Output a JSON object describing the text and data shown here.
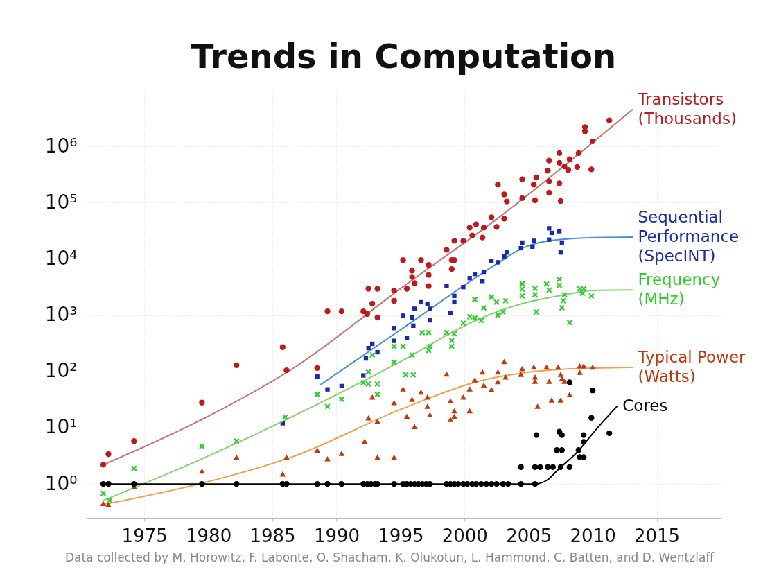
{
  "chart_data": {
    "type": "scatter",
    "title": "Trends in Computation",
    "log": "y",
    "grid": true,
    "xlim": [
      1970.5,
      2020
    ],
    "xticks": [
      1975,
      1980,
      1985,
      1990,
      1995,
      2000,
      2005,
      2010,
      2015
    ],
    "ylim": [
      0.25,
      10000000
    ],
    "yticks": [
      {
        "value": 1,
        "label": "10⁰"
      },
      {
        "value": 10,
        "label": "10¹"
      },
      {
        "value": 100,
        "label": "10²"
      },
      {
        "value": 1000,
        "label": "10³"
      },
      {
        "value": 10000,
        "label": "10⁴"
      },
      {
        "value": 100000,
        "label": "10⁵"
      },
      {
        "value": 1000000,
        "label": "10⁶"
      }
    ],
    "annotations": [
      "Data collected by M. Horowitz, F. Labonte, O. Shacham, K. Olukotun, L. Hammond,  C. Batten, and D. Wentzlaff"
    ],
    "series": [
      {
        "type": "line",
        "color": "#c27272",
        "x": [
          1971.8,
          1980,
          1986.5,
          1995.2,
          2002.7,
          2013.1
        ],
        "values": [
          2.2,
          16,
          109,
          3200,
          55000,
          4500000
        ]
      },
      {
        "name": "Transistors\n(Thousands)",
        "marker": "circle",
        "color": "#b81c1c",
        "x": [
          1971.8,
          1972.2,
          1974.2,
          1979.5,
          1982.2,
          1985.8,
          1986.1,
          1988.5,
          1989.3,
          1990.4,
          1992.1,
          1992.5,
          1993.2,
          1992.8,
          1992.4,
          1993.2,
          1994.5,
          1994.5,
          1995.2,
          1995.5,
          1995.9,
          1995.9,
          1996.1,
          1996.6,
          1997.2,
          1997.2,
          1997.2,
          1998.6,
          1999.0,
          1999.2,
          1999.0,
          1999.2,
          1999.9,
          2000.4,
          2000.6,
          2000.9,
          2001.4,
          2001.5,
          2002.1,
          2002.5,
          2002.6,
          2011.3,
          2009.4,
          2009.4,
          2010.0,
          2007.4,
          2008.9,
          2008.2,
          2006.6,
          2007.4,
          2007.8,
          2008.1,
          2008.8,
          2009.9,
          2006.5,
          2005.6,
          2004.5,
          2005.4,
          2006.6,
          2007.4,
          2006.6,
          2003.1,
          2004.5,
          2005.5,
          2007.5,
          2003.3,
          2003.1
        ],
        "values": [
          2.2,
          3.4,
          5.8,
          28,
          129,
          270,
          105,
          115,
          1170,
          1170,
          1170,
          2950,
          2950,
          1600,
          1050,
          910,
          2750,
          1800,
          9500,
          2950,
          6200,
          4800,
          3700,
          9500,
          7800,
          5200,
          3300,
          14500,
          9500,
          9500,
          6600,
          21000,
          21000,
          36000,
          26000,
          41000,
          24000,
          36000,
          55000,
          37000,
          210000,
          2900000,
          2200000,
          1850000,
          1230000,
          760000,
          760000,
          590000,
          560000,
          510000,
          440000,
          380000,
          430000,
          390000,
          370000,
          280000,
          260000,
          210000,
          240000,
          220000,
          150000,
          140000,
          120000,
          110000,
          107000,
          105000,
          52000
        ]
      },
      {
        "type": "line",
        "color": "#4a8ed8",
        "x": [
          1988.7,
          1995,
          2002.7,
          2004.4,
          2006.6,
          2010,
          2013.1
        ],
        "values": [
          57,
          550,
          8700,
          15000,
          21000,
          24000,
          24500
        ]
      },
      {
        "name": "Sequential\nPerformance\n(SpecINT)",
        "marker": "square",
        "color": "#1a2aa8",
        "x": [
          1985.8,
          1988.5,
          1989.3,
          1990.4,
          1992.1,
          1992.3,
          1992.8,
          1992.5,
          1993.2,
          1994.5,
          1994.5,
          1995.2,
          1995.5,
          1995.9,
          1996.1,
          1996.0,
          1996.6,
          1997.1,
          1997.3,
          1997.3,
          1998.6,
          1998.9,
          1999.2,
          1999.2,
          1999.9,
          2000.4,
          2000.8,
          2001.4,
          2001.5,
          2002.1,
          2002.6,
          2006.6,
          2007.4,
          2006.8,
          2006.6,
          2007.6,
          2007.5,
          2005.4,
          2005.3,
          2004.5,
          2004.4,
          2003.3,
          2003.1
        ],
        "values": [
          12,
          81,
          48,
          55,
          85,
          170,
          310,
          260,
          220,
          590,
          350,
          980,
          390,
          910,
          1300,
          650,
          1700,
          1600,
          1300,
          810,
          3300,
          1100,
          2200,
          1700,
          3150,
          4550,
          5400,
          4050,
          5900,
          9100,
          8700,
          35000,
          31000,
          29000,
          22000,
          19500,
          13000,
          21000,
          16500,
          19500,
          15500,
          13000,
          11000
        ]
      },
      {
        "type": "line",
        "color": "#86d06e",
        "x": [
          1971.8,
          1979.5,
          1988.2,
          1995,
          2001.1,
          2004.5,
          2007.8,
          2010,
          2013.1
        ],
        "values": [
          0.51,
          2.8,
          24,
          150,
          850,
          1600,
          2300,
          2750,
          2800
        ]
      },
      {
        "name": "Frequency\n(MHz)",
        "marker": "cross",
        "color": "#2fcc2f",
        "x": [
          1971.8,
          1972.3,
          1974.2,
          1979.5,
          1982.2,
          1986,
          1988.5,
          1989.3,
          1990.4,
          1992.1,
          1992.5,
          1992.8,
          1992.5,
          1993.2,
          1993.2,
          1994.5,
          1995.2,
          1994.5,
          1995.4,
          1996.0,
          1995.9,
          1996.7,
          1997.2,
          1997.2,
          1997.3,
          1998.6,
          1999.0,
          1999.0,
          1999.2,
          1999.9,
          2000.4,
          2000.8,
          2000.8,
          2001.3,
          2001.5,
          2002.1,
          2002.5,
          2002.6,
          2004.5,
          2004.5,
          2004.5,
          2005.5,
          2005.5,
          2006.4,
          2006.6,
          2007.4,
          2007.4,
          2007.8,
          2007.7,
          2007.6,
          2008.2,
          2009.0,
          2009.3,
          2009.2,
          2009.9,
          2005.6,
          2003.2,
          2003.0
        ],
        "values": [
          0.68,
          0.51,
          1.9,
          4.7,
          5.8,
          15.5,
          39,
          24,
          32,
          63,
          98,
          196,
          60,
          60,
          39,
          280,
          280,
          145,
          87,
          87,
          196,
          490,
          490,
          235,
          280,
          490,
          355,
          280,
          465,
          720,
          940,
          1900,
          890,
          810,
          1350,
          2100,
          1700,
          1000,
          3600,
          2900,
          2200,
          3000,
          2300,
          3600,
          2800,
          4350,
          3400,
          2300,
          1800,
          1350,
          740,
          2950,
          2950,
          2450,
          2200,
          1140,
          1800,
          1140
        ]
      },
      {
        "type": "line",
        "color": "#f0a050",
        "x": [
          1971.8,
          1980,
          1986.5,
          1995.2,
          2001.1,
          2005.5,
          2007.8,
          2013.1
        ],
        "values": [
          0.43,
          1.1,
          3.0,
          22,
          67,
          100,
          110,
          118
        ]
      },
      {
        "name": "Typical Power\n(Watts)",
        "marker": "triangle",
        "color": "#c0380e",
        "x": [
          1971.8,
          1972.2,
          1974.2,
          1979.5,
          1982.2,
          1986.1,
          1985.8,
          1988.5,
          1989.3,
          1990.4,
          1992.2,
          1992.5,
          1993.2,
          1992.8,
          1993.2,
          1994.5,
          1994.5,
          1995.2,
          1995.5,
          1995.9,
          1996.1,
          1996.6,
          1997.1,
          1997.1,
          1997.3,
          1998.6,
          1998.9,
          1999.2,
          1999.2,
          1998.9,
          1999.9,
          2000.4,
          2000.4,
          2000.8,
          2001.4,
          2001.5,
          2002.1,
          2002.6,
          2002.6,
          2003.1,
          2004.5,
          2005.4,
          2006.4,
          2007.3,
          2009.0,
          2009.3,
          2010.0,
          2009.0,
          2004.4,
          2005.5,
          2005.5,
          2006.6,
          2007.5,
          2007.6,
          2007.8,
          2003.2,
          2008.2,
          2007.5,
          2006.8,
          2005.7
        ],
        "values": [
          0.45,
          0.43,
          0.9,
          1.7,
          3.0,
          3.0,
          1.5,
          4.0,
          2.8,
          3.5,
          5.8,
          15,
          13,
          35,
          3.0,
          3.0,
          28,
          49,
          16,
          32,
          10.5,
          43,
          35,
          24,
          17,
          90,
          30,
          20,
          16,
          14,
          35,
          20,
          49,
          71,
          98,
          57,
          48,
          98,
          66,
          150,
          112,
          120,
          120,
          120,
          126,
          126,
          120,
          97,
          89,
          80,
          67,
          67,
          89,
          75,
          67,
          80,
          39,
          31,
          31,
          24
        ]
      },
      {
        "type": "line",
        "color": "#000000",
        "x": [
          1971.8,
          2003,
          2005.5,
          2006.5,
          2007.3,
          2008.9,
          2010,
          2011.9
        ],
        "values": [
          1,
          1,
          1,
          1.2,
          1.8,
          3.9,
          7.9,
          24
        ]
      },
      {
        "name": "Cores",
        "marker": "circle",
        "color": "#000000",
        "x": [
          1971.8,
          1972.2,
          1974.2,
          1979.5,
          1982.2,
          1985.8,
          1986.1,
          1988.5,
          1989.3,
          1990.4,
          1992.1,
          1992.4,
          1992.7,
          1993.0,
          1993.2,
          1994.5,
          1995.2,
          1995.5,
          1995.8,
          1996.1,
          1996.4,
          1996.7,
          1997.0,
          1997.3,
          1998.6,
          1998.9,
          1999.2,
          1999.5,
          1999.9,
          2000.2,
          2000.6,
          2000.9,
          2001.3,
          2001.7,
          2002.1,
          2002.5,
          2003.0,
          2003.4,
          2004.4,
          2005.5,
          2004.4,
          2005.5,
          2005.9,
          2006.5,
          2006.9,
          2007.5,
          2008.2,
          2007.2,
          2007.6,
          2008.9,
          2009.0,
          2009.3,
          2009.3,
          2005.6,
          2007.4,
          2007.6,
          2009.3,
          2011.3,
          2009.9,
          2010.0,
          2008.2
        ],
        "values": [
          1,
          1,
          1,
          1,
          1,
          1,
          1,
          1,
          1,
          1,
          1,
          1,
          1,
          1,
          1,
          1,
          1,
          1,
          1,
          1,
          1,
          1,
          1,
          1,
          1,
          1,
          1,
          1,
          1,
          1,
          1,
          1,
          1,
          1,
          1,
          1,
          1,
          1,
          1,
          1,
          2,
          2,
          2,
          2,
          2,
          2,
          2,
          4,
          4,
          4,
          3,
          3,
          5.6,
          7.4,
          8.5,
          7.4,
          7.4,
          8,
          15,
          46,
          64
        ]
      }
    ]
  }
}
